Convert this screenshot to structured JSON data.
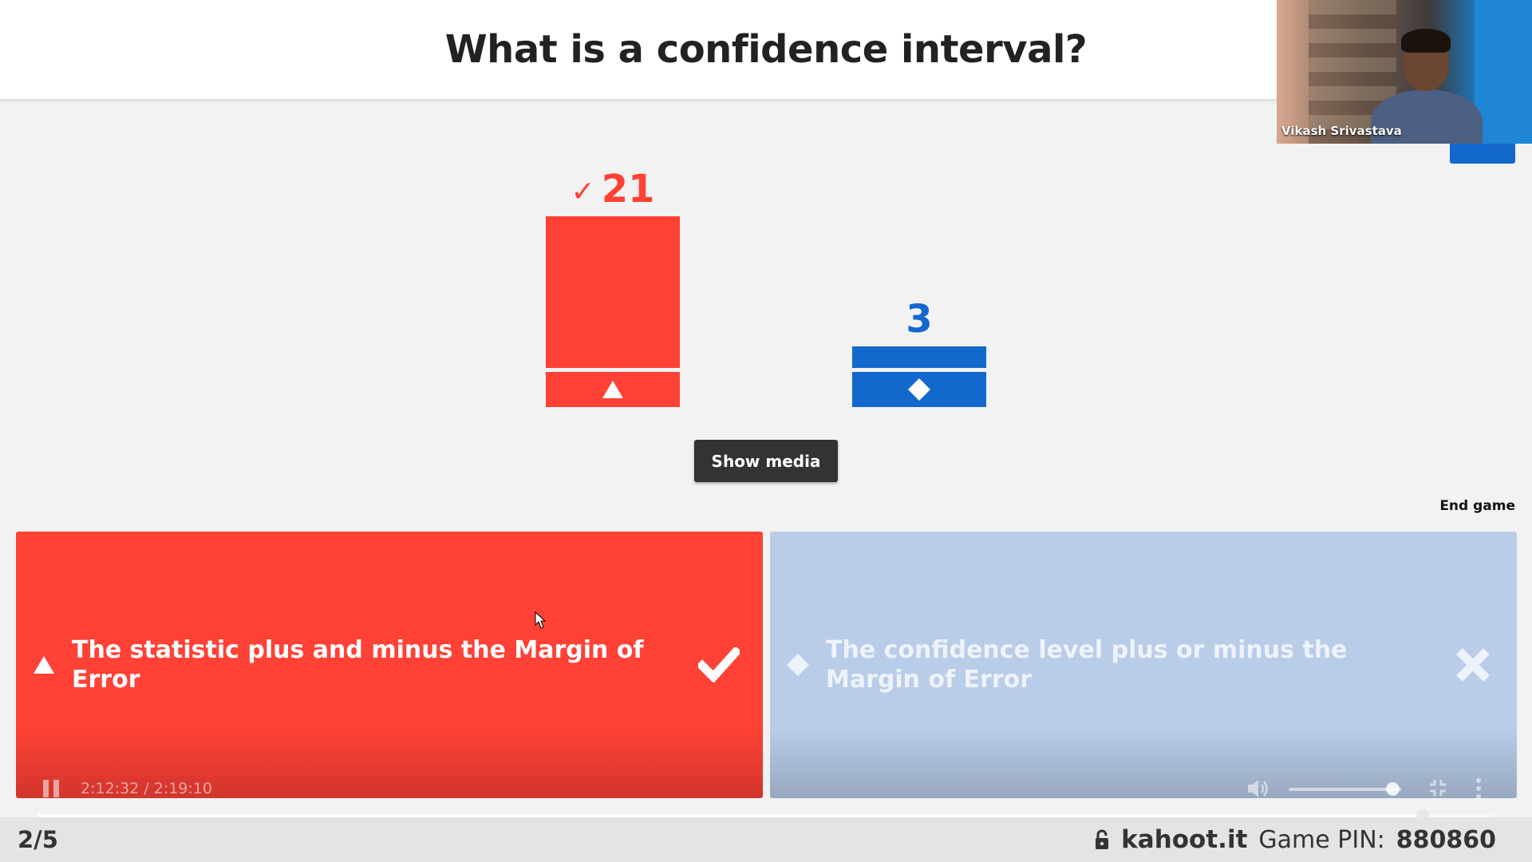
{
  "question": {
    "title": "What is a confidence interval?"
  },
  "webcam": {
    "participant_name": "Vikash Srivastava"
  },
  "chart_data": {
    "type": "bar",
    "categories": [
      "triangle",
      "diamond"
    ],
    "values": [
      21,
      3
    ],
    "colors": [
      "#ff4136",
      "#1368ce"
    ],
    "correct": [
      true,
      false
    ]
  },
  "labels": {
    "correct_mark": "✓",
    "count_a": "21",
    "count_b": "3",
    "show_media": "Show media",
    "end_game": "End game"
  },
  "answers": [
    {
      "shape": "triangle-icon",
      "text": "The statistic plus and minus the Margin of Error",
      "result": "correct",
      "color": "#ff4136"
    },
    {
      "shape": "diamond-icon",
      "text": "The confidence level plus or minus the Margin of Error",
      "result": "incorrect",
      "color": "#b9cde9"
    }
  ],
  "video": {
    "time": "2:12:32 / 2:19:10",
    "progress": 0.951,
    "volume": 0.92
  },
  "footer": {
    "question_counter": "2/5",
    "site": "kahoot.it",
    "pin_label": "Game PIN:",
    "pin": "880860"
  }
}
